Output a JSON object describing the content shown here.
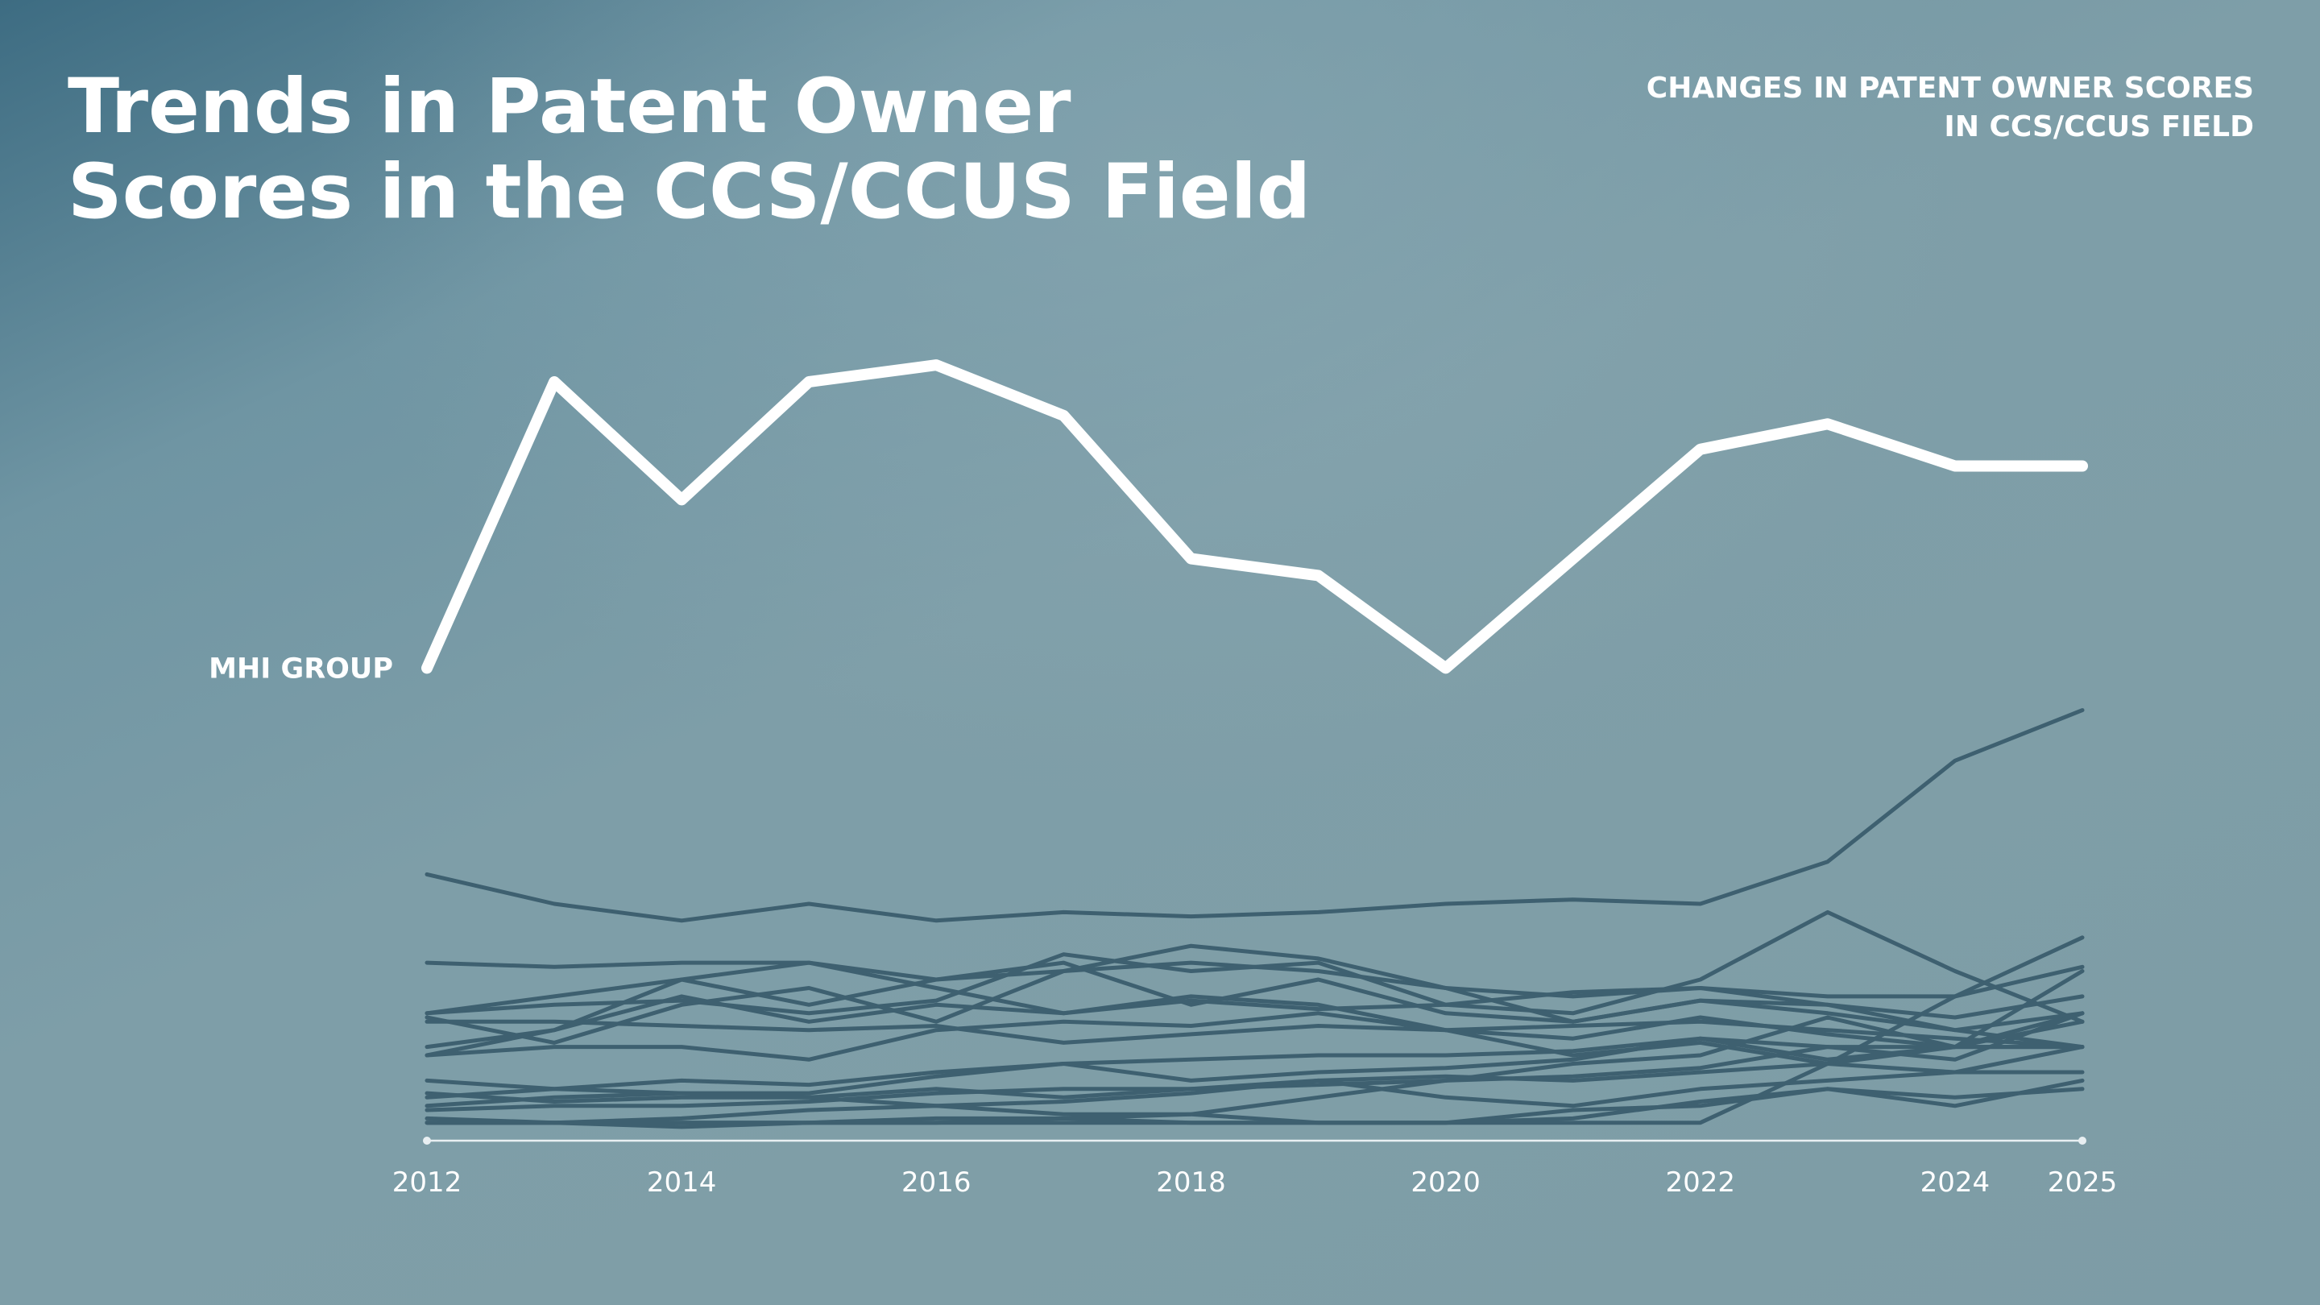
{
  "title": "Trends in Patent Owner Scores in the CCS/CCUS Field",
  "subtitle": [
    "CHANGES IN PATENT OWNER SCORES",
    "IN CCS/CCUS FIELD"
  ],
  "colors": {
    "highlight": "#ffffff",
    "others": "#3e6070",
    "axis": "#e8eff2"
  },
  "chart_data": {
    "type": "line",
    "x": [
      2012,
      2013,
      2014,
      2015,
      2016,
      2017,
      2018,
      2019,
      2020,
      2021,
      2022,
      2023,
      2024,
      2025
    ],
    "tick_labels": [
      "2012",
      "2014",
      "2016",
      "2018",
      "2020",
      "2022",
      "2024",
      "2025"
    ],
    "tick_values": [
      2012,
      2014,
      2016,
      2018,
      2020,
      2022,
      2024,
      2025
    ],
    "ylim": [
      0,
      100
    ],
    "y_axis_visible": false,
    "grid": false,
    "series": [
      {
        "name": "MHI GROUP",
        "highlight": true,
        "values": [
          57,
          91,
          77,
          91,
          93,
          87,
          70,
          68,
          57,
          70,
          83,
          86,
          81,
          81
        ]
      },
      {
        "values": [
          32.5,
          29,
          27,
          29,
          27,
          28,
          27.5,
          28,
          29,
          29.5,
          29,
          34,
          46,
          52
        ]
      },
      {
        "values": [
          22,
          21.5,
          22,
          22,
          19,
          16,
          17.5,
          16.5,
          17,
          16,
          20,
          28,
          21,
          15
        ]
      },
      {
        "values": [
          11,
          14,
          18,
          15,
          17,
          16,
          18,
          17,
          14,
          13,
          15.5,
          13.5,
          12,
          12
        ]
      },
      {
        "values": [
          5,
          6,
          6.5,
          6.5,
          8.5,
          10,
          8,
          9,
          9.5,
          10.5,
          13,
          12,
          12,
          16
        ]
      },
      {
        "values": [
          11,
          12,
          12,
          10.5,
          14,
          15,
          14.5,
          16,
          14,
          11,
          12.5,
          10,
          12,
          21
        ]
      },
      {
        "values": [
          3.5,
          3,
          2.5,
          3,
          3.5,
          3.5,
          4,
          6,
          8,
          10,
          11,
          15.5,
          12,
          15
        ]
      },
      {
        "values": [
          6.5,
          5.5,
          6,
          6,
          5,
          4,
          4,
          3,
          3,
          4.5,
          5,
          7,
          6,
          7
        ]
      },
      {
        "values": [
          8,
          7,
          6.5,
          6,
          7,
          6,
          7,
          7.5,
          8,
          8.5,
          9.5,
          12,
          10.5,
          16
        ]
      },
      {
        "values": [
          6,
          7,
          8,
          7.5,
          9,
          10,
          10.5,
          11,
          11,
          11.5,
          13,
          10.5,
          12,
          12
        ]
      },
      {
        "values": [
          3,
          3,
          3.5,
          4.5,
          5,
          5.5,
          6.5,
          8,
          8.5,
          8,
          9,
          10,
          9,
          9
        ]
      },
      {
        "values": [
          3,
          3,
          3,
          3,
          3,
          3.5,
          3,
          3,
          3,
          3.5,
          5.5,
          7,
          5,
          8
        ]
      },
      {
        "values": [
          3,
          3,
          3,
          3,
          3,
          3,
          3,
          3,
          3,
          3,
          3,
          10,
          18,
          25
        ]
      },
      {
        "values": [
          16,
          17,
          17.5,
          16,
          17.5,
          23,
          21,
          22,
          17,
          18.5,
          19,
          18,
          18,
          21.5
        ]
      },
      {
        "values": [
          12,
          14,
          20,
          22,
          20,
          21,
          22,
          21,
          19,
          18,
          19,
          17,
          14,
          16
        ]
      },
      {
        "values": [
          16,
          18,
          20,
          17,
          20,
          22,
          17,
          20,
          16,
          15,
          17.5,
          16,
          14,
          12
        ]
      },
      {
        "values": [
          15,
          15,
          14.5,
          14,
          14.5,
          12.5,
          13.5,
          14.5,
          14,
          14.5,
          15,
          14,
          13,
          12
        ]
      },
      {
        "values": [
          15.5,
          12.5,
          17,
          19,
          15,
          21,
          24,
          22.5,
          19,
          15,
          17.5,
          17,
          15.5,
          18
        ]
      },
      {
        "values": [
          4.5,
          5,
          5,
          5.5,
          6.5,
          7,
          7,
          8,
          6,
          5,
          7,
          8,
          9,
          12
        ]
      }
    ]
  }
}
